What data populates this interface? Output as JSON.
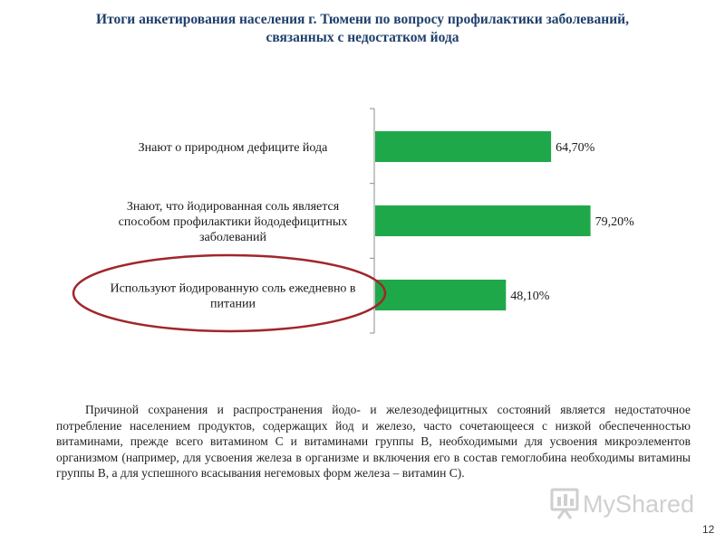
{
  "slide": {
    "title_line1": "Итоги анкетирования населения г. Тюмени по вопросу профилактики заболеваний,",
    "title_line2": "связанных с недостатком йода",
    "paragraph": "Причиной сохранения и распространения йодо- и железодефицитных состояний является недостаточное потребление населением продуктов, содержащих йод и железо, часто сочетающееся с низкой обеспеченностью витаминами, прежде всего витамином С и витаминами группы В, необходимыми для усвоения микроэлементов организмом (например, для усвоения железа в организме и включения его в состав гемоглобина необходимы витамины группы В, а для успешного всасывания негемовых форм железа – витамин С).",
    "page_number": "12",
    "watermark": "MyShared"
  },
  "colors": {
    "title": "#1f3f6b",
    "bar": "#1fa84a",
    "highlight_ellipse": "#a0262a",
    "axis": "#8c8c8c"
  },
  "chart_data": {
    "type": "bar",
    "orientation": "horizontal",
    "categories": [
      [
        "Знают о природном дефиците йода"
      ],
      [
        "Знают, что йодированная соль является",
        "способом профилактики йододефицитных",
        "заболеваний"
      ],
      [
        "Используют йодированную соль ежедневно в",
        "питании"
      ]
    ],
    "values": [
      64.7,
      79.2,
      48.1
    ],
    "data_labels": [
      "64,70%",
      "79,20%",
      "48,10%"
    ],
    "highlighted_category_index": 2,
    "xlim": [
      0,
      100
    ],
    "grid": false,
    "legend": "none",
    "title": "",
    "xlabel": "",
    "ylabel": ""
  }
}
